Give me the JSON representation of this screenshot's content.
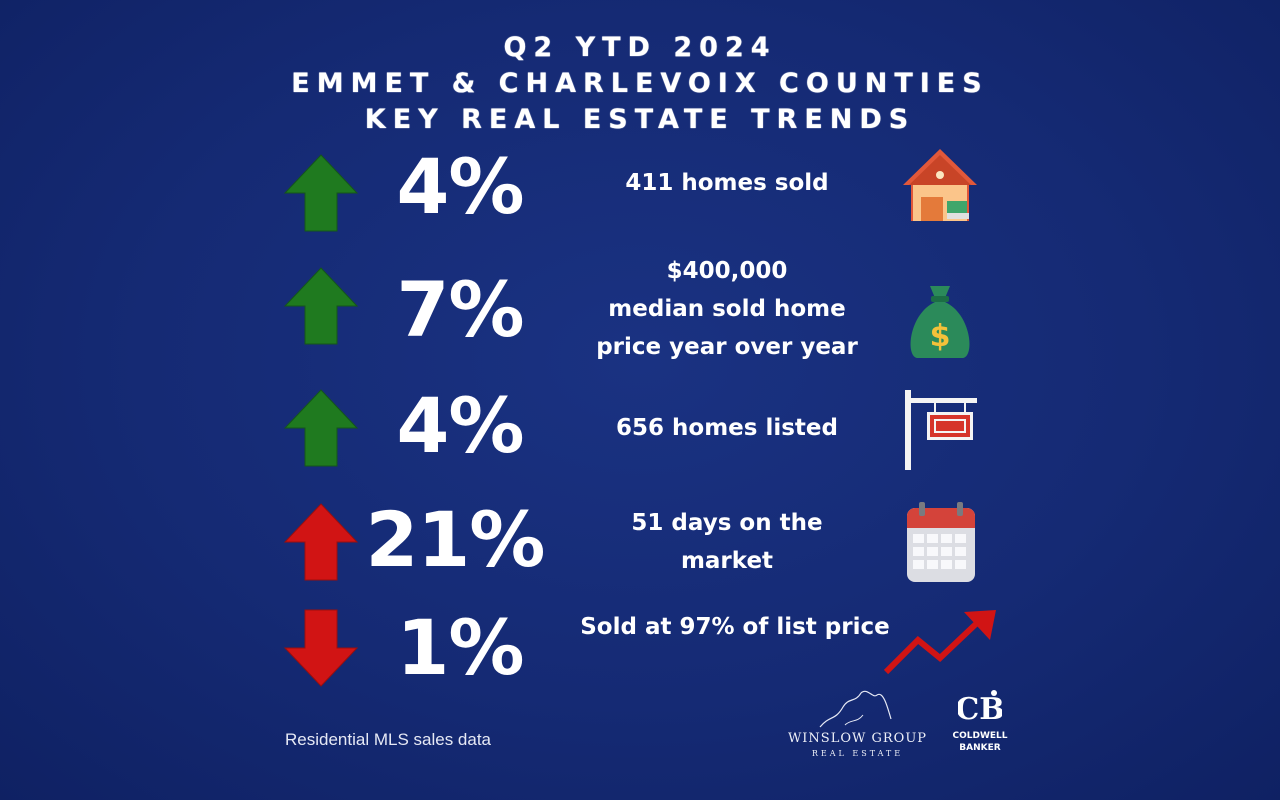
{
  "header": {
    "line1": "Q2 YTD 2024",
    "line2": "EMMET & CHARLEVOIX COUNTIES",
    "line3": "KEY REAL ESTATE TRENDS"
  },
  "colors": {
    "background": "#152a74",
    "arrow_up_green": "#1f7a1f",
    "arrow_up_red": "#d11414",
    "arrow_down_red": "#d11414"
  },
  "trends": [
    {
      "direction": "up",
      "arrow_color": "green",
      "percent": "4%",
      "description": [
        "411 homes sold"
      ],
      "icon": "house-icon"
    },
    {
      "direction": "up",
      "arrow_color": "green",
      "percent": "7%",
      "description": [
        "$400,000",
        "median sold home",
        "price year over year"
      ],
      "icon": "money-bag-icon"
    },
    {
      "direction": "up",
      "arrow_color": "green",
      "percent": "4%",
      "description": [
        "656  homes listed"
      ],
      "icon": "for-sale-sign-icon"
    },
    {
      "direction": "up",
      "arrow_color": "red",
      "percent": "21%",
      "description": [
        "51 days on the",
        "market"
      ],
      "icon": "calendar-icon"
    },
    {
      "direction": "down",
      "arrow_color": "red",
      "percent": "1%",
      "description": [
        "Sold at 97% of list price"
      ],
      "icon": "trend-up-arrow-icon"
    }
  ],
  "footer": {
    "note": "Residential MLS sales data",
    "brand_name": "WINSLOW GROUP",
    "brand_sub": "REAL ESTATE",
    "partner_line1": "COLDWELL",
    "partner_line2": "BANKER"
  }
}
